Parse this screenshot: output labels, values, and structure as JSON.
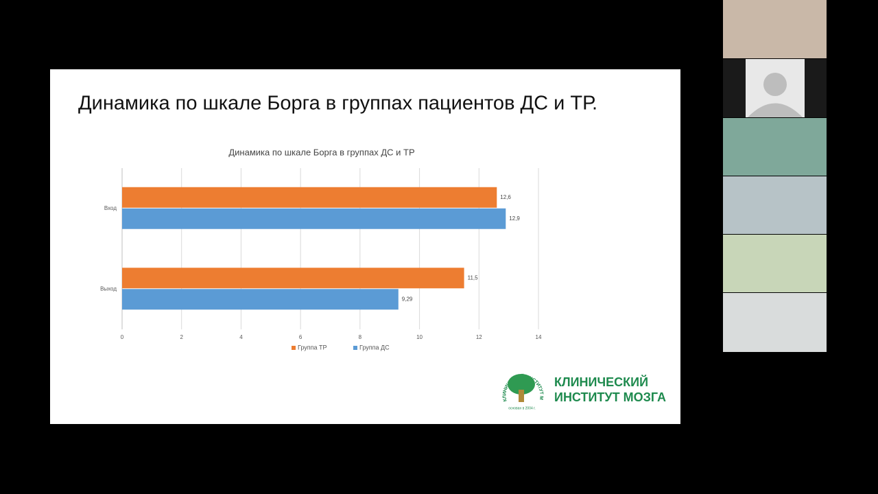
{
  "slide_title": "Динамика по шкале Борга в группах пациентов ДС и ТР.",
  "chart_data": {
    "type": "bar",
    "orientation": "horizontal",
    "title": "Динамика по шкале Борга в группах ДС и ТР",
    "categories": [
      "Вход",
      "Выход"
    ],
    "series": [
      {
        "name": "Группа ТР",
        "color": "#ed7d31",
        "values": [
          12.6,
          11.5
        ],
        "value_labels": [
          "12,6",
          "11,5"
        ]
      },
      {
        "name": "Группа ДС",
        "color": "#5b9bd5",
        "values": [
          12.9,
          9.29
        ],
        "value_labels": [
          "12,9",
          "9,29"
        ]
      }
    ],
    "xlim": [
      0,
      14
    ],
    "xticks": [
      0,
      2,
      4,
      6,
      8,
      10,
      12,
      14
    ],
    "grid": true,
    "legend": "bottom"
  },
  "logo": {
    "ring": "КЛИНИЧЕСКИЙ ИНСТИТУТ МОЗГА",
    "line1": "КЛИНИЧЕСКИЙ",
    "line2": "ИНСТИТУТ МОЗГА",
    "founded": "основан в 2004 г."
  }
}
